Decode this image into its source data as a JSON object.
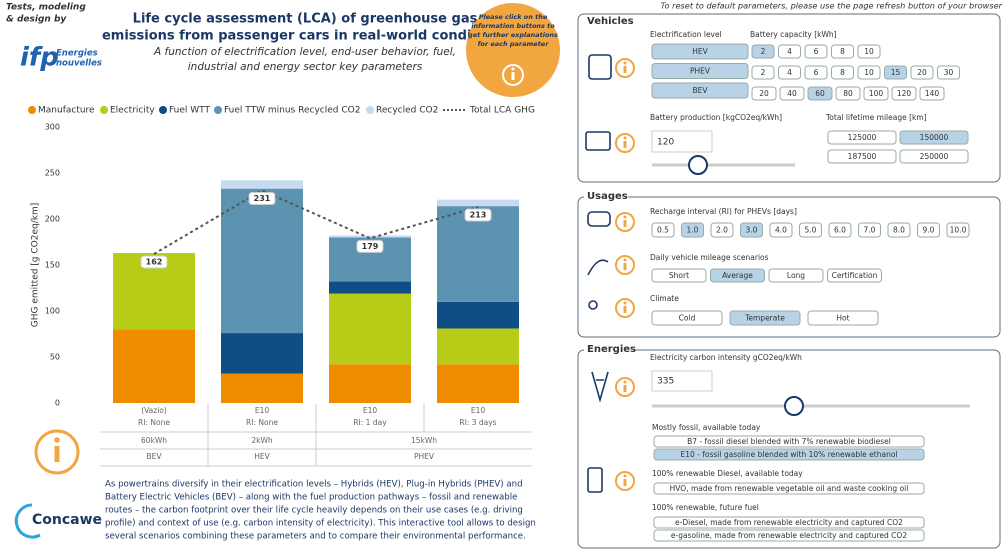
{
  "header": {
    "credit": [
      "Tests, modeling",
      "& design by"
    ],
    "logo": "ifp",
    "logo_sub": [
      "Energies",
      "nouvelles"
    ],
    "title": [
      "Life cycle assessment (LCA) of greenhouse gas",
      "emissions from passenger cars in real-world conditions"
    ],
    "subtitle": [
      "A function of electrification level, end-user behavior, fuel,",
      "industrial and energy sector key parameters"
    ],
    "badge": [
      "Please click on the",
      "information buttons to",
      "get further explanations",
      "for each parameter"
    ]
  },
  "chart_data": {
    "type": "bar",
    "stacked": true,
    "y_label": "GHG emitted [g CO2eq/km]",
    "categories": [
      "(Vazio)",
      "E10",
      "E10",
      "E10"
    ],
    "ri_labels": [
      "RI: None",
      "RI: None",
      "RI: 1 day",
      "RI: 3 days"
    ],
    "battery_labels": [
      "60kWh",
      "2kWh",
      "15kWh",
      null
    ],
    "vehicle_labels": [
      "BEV",
      "HEV",
      "PHEV",
      null
    ],
    "series": [
      {
        "name": "Manufacture",
        "color": "#f08c00",
        "values": [
          80,
          32,
          42,
          42
        ]
      },
      {
        "name": "Electricity",
        "color": "#b7cc17",
        "values": [
          83,
          0,
          77,
          39
        ]
      },
      {
        "name": "Fuel WTT",
        "color": "#0e4d86",
        "values": [
          0,
          44,
          13,
          29
        ]
      },
      {
        "name": "Fuel TTW minus Recycled CO2",
        "color": "#5b93b1",
        "values": [
          0,
          157,
          48,
          104
        ]
      },
      {
        "name": "Recycled CO2",
        "color": "#c6dbf1",
        "values": [
          0,
          9,
          2,
          7
        ]
      }
    ],
    "line": {
      "name": "Total LCA GHG",
      "color": "#555555",
      "values": [
        162,
        231,
        179,
        213
      ]
    },
    "ylim": [
      0,
      300
    ],
    "yticks": [
      0,
      50,
      100,
      150,
      200,
      250,
      300
    ],
    "grid": false
  },
  "footer": {
    "logo": "Concawe",
    "text": [
      "As powertrains diversify in their electrification levels – Hybrids (HEV), Plug-in Hybrids (PHEV) and",
      "Battery Electric Vehicles (BEV) – along with the fuel production pathways – fossil and renewable",
      "routes – the carbon footprint over their life cycle heavily depends on their use cases (e.g. driving",
      "profile) and context of use (e.g. carbon intensity of electricity). This interactive tool allows to design",
      "several scenarios combining these parameters and to compare their environmental performance."
    ]
  },
  "panel": {
    "reset_note": "To reset to default parameters, please use the page refresh button of your browser",
    "vehicles": {
      "heading": "Vehicles",
      "electrification": {
        "label": "Electrification level",
        "options": [
          "HEV",
          "PHEV",
          "BEV"
        ]
      },
      "battery_capacity": {
        "label": "Battery capacity [kWh]",
        "rows": [
          {
            "options": [
              2,
              4,
              6,
              8,
              10
            ],
            "selected": 0
          },
          {
            "options": [
              2,
              4,
              6,
              8,
              10,
              15,
              20,
              30
            ],
            "selected": 5
          },
          {
            "options": [
              20,
              40,
              60,
              80,
              100,
              120,
              140
            ],
            "selected": 2
          }
        ]
      },
      "battery_production": {
        "label": "Battery production [kgCO2eq/kWh]",
        "value": 120
      },
      "mileage": {
        "label": "Total lifetime mileage [km]",
        "options": [
          125000,
          150000,
          187500,
          250000
        ],
        "selected": 1
      }
    },
    "usages": {
      "heading": "Usages",
      "recharge": {
        "label": "Recharge interval (RI) for PHEVs [days]",
        "options": [
          "0.5",
          "1.0",
          "2.0",
          "3.0",
          "4.0",
          "5.0",
          "6.0",
          "7.0",
          "8.0",
          "9.0",
          "10.0"
        ],
        "selected": [
          1,
          3
        ]
      },
      "daily": {
        "label": "Daily vehicle mileage scenarios",
        "options": [
          "Short",
          "Average",
          "Long",
          "Certification"
        ],
        "selected": [
          1
        ]
      },
      "climate": {
        "label": "Climate",
        "options": [
          "Cold",
          "Temperate",
          "Hot"
        ],
        "selected": [
          1
        ]
      }
    },
    "energies": {
      "heading": "Energies",
      "electricity": {
        "label": "Electricity carbon intensity gCO2eq/kWh",
        "value": 335
      },
      "fossil": {
        "label": "Mostly fossil, available today",
        "options": [
          "B7 - fossil diesel blended with 7% renewable biodiesel",
          "E10 - fossil gasoline blended with 10% renewable ethanol"
        ],
        "selected": [
          1
        ]
      },
      "renewable_diesel": {
        "label": "100% renewable Diesel, available today",
        "options": [
          "HVO, made from renewable vegetable oil and waste cooking oil"
        ],
        "selected": []
      },
      "future": {
        "label": "100% renewable, future fuel",
        "options": [
          "e-Diesel, made from renewable electricity and captured CO2",
          "e-gasoline, made from renewable electricity and captured CO2"
        ],
        "selected": []
      }
    }
  }
}
